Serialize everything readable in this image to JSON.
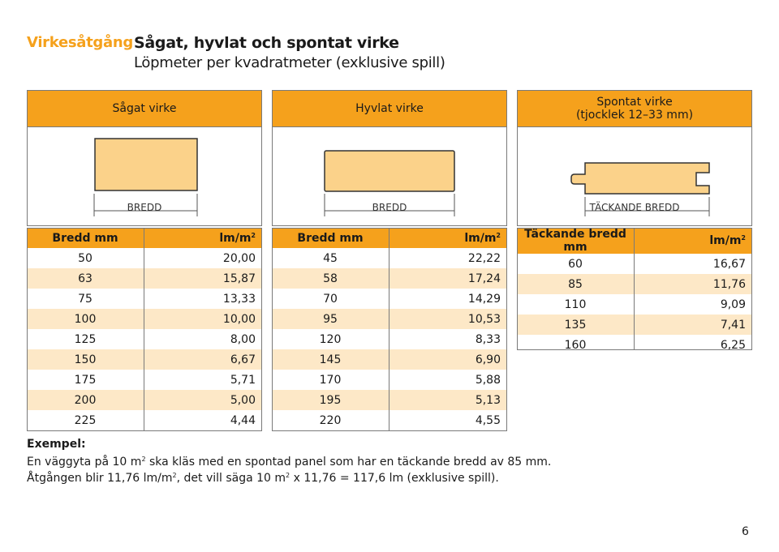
{
  "header": {
    "kicker": "Virkesåtgång",
    "title": "Sågat, hyvlat och spontat virke",
    "subtitle": "Löpmeter per kvadratmeter (exklusive spill)"
  },
  "panels": [
    {
      "title_line1": "Sågat virke",
      "title_line2": "",
      "dimension_label": "BREDD"
    },
    {
      "title_line1": "Hyvlat virke",
      "title_line2": "",
      "dimension_label": "BREDD"
    },
    {
      "title_line1": "Spontat virke",
      "title_line2": "(tjocklek 12–33 mm)",
      "dimension_label": "TÄCKANDE BREDD"
    }
  ],
  "tables": [
    {
      "col1": "Bredd mm",
      "col2": "lm/m",
      "rows": [
        [
          "50",
          "20,00"
        ],
        [
          "63",
          "15,87"
        ],
        [
          "75",
          "13,33"
        ],
        [
          "100",
          "10,00"
        ],
        [
          "125",
          "8,00"
        ],
        [
          "150",
          "6,67"
        ],
        [
          "175",
          "5,71"
        ],
        [
          "200",
          "5,00"
        ],
        [
          "225",
          "4,44"
        ]
      ]
    },
    {
      "col1": "Bredd mm",
      "col2": "lm/m",
      "rows": [
        [
          "45",
          "22,22"
        ],
        [
          "58",
          "17,24"
        ],
        [
          "70",
          "14,29"
        ],
        [
          "95",
          "10,53"
        ],
        [
          "120",
          "8,33"
        ],
        [
          "145",
          "6,90"
        ],
        [
          "170",
          "5,88"
        ],
        [
          "195",
          "5,13"
        ],
        [
          "220",
          "4,55"
        ]
      ]
    },
    {
      "col1": "Täckande bredd mm",
      "col2": "lm/m",
      "rows": [
        [
          "60",
          "16,67"
        ],
        [
          "85",
          "11,76"
        ],
        [
          "110",
          "9,09"
        ],
        [
          "135",
          "7,41"
        ],
        [
          "160",
          "6,25"
        ]
      ]
    }
  ],
  "unit_superscript": "2",
  "example": {
    "label": "Exempel:",
    "line1_a": "En väggyta på 10 m",
    "line1_b": " ska kläs med en spontad panel som har en täckande bredd av 85 mm.",
    "line2_a": "Åtgången blir 11,76 lm/m",
    "line2_b": ", det vill säga 10 m",
    "line2_c": " x 11,76 = 117,6 lm (exklusive spill)."
  },
  "page_number": "6",
  "colors": {
    "accent": "#f5a11c",
    "row_alt": "#fde8c7",
    "wood_fill": "#fbd28a",
    "border": "#7a7a7a"
  }
}
